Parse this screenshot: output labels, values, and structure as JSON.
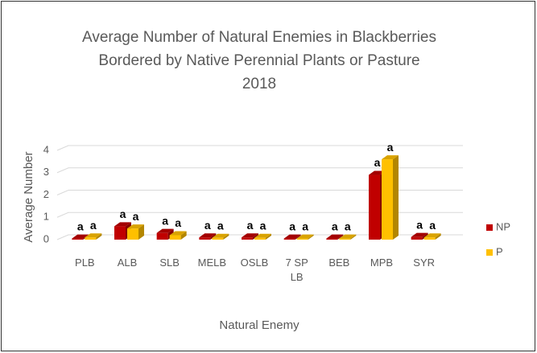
{
  "chart_data": {
    "type": "bar",
    "title": [
      "Average Number of Natural Enemies in Blackberries",
      "Bordered by Native Perennial Plants or Pasture",
      "2018"
    ],
    "x_label": "Natural Enemy",
    "y_label": "Average Number",
    "categories": [
      "PLB",
      "ALB",
      "SLB",
      "MELB",
      "OSLB",
      "7 SP LB",
      "BEB",
      "MPB",
      "SYR"
    ],
    "series": [
      {
        "name": "NP",
        "color": "#c00000",
        "values": [
          0.05,
          0.6,
          0.3,
          0.1,
          0.1,
          0.05,
          0.05,
          2.9,
          0.12
        ],
        "labels": [
          "a",
          "a",
          "a",
          "a",
          "a",
          "a",
          "a",
          "a",
          "a"
        ]
      },
      {
        "name": "P",
        "color": "#ffc000",
        "values": [
          0.1,
          0.5,
          0.2,
          0.08,
          0.08,
          0.05,
          0.05,
          3.6,
          0.1
        ],
        "labels": [
          "a",
          "a",
          "a",
          "a",
          "a",
          "a",
          "a",
          "a",
          "a"
        ]
      }
    ],
    "ylim": [
      0,
      4
    ],
    "yticks": [
      0,
      1,
      2,
      3,
      4
    ],
    "grid": true,
    "legend": "right"
  }
}
